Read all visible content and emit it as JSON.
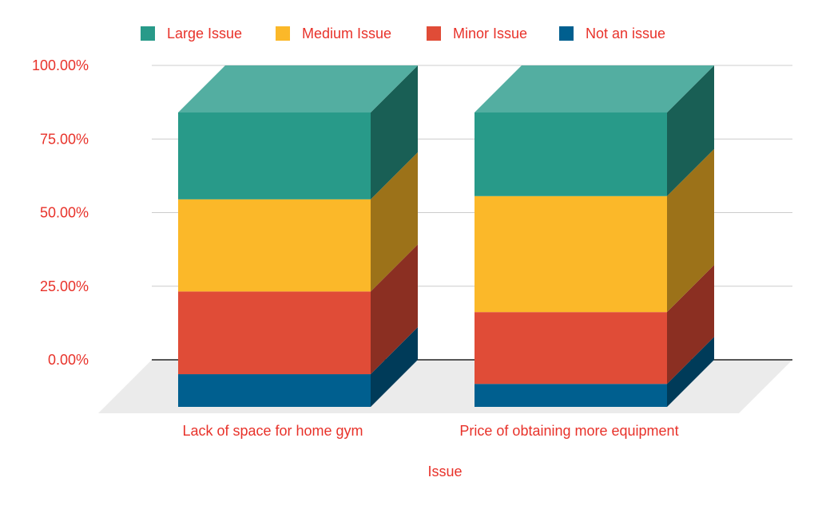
{
  "chart_data": {
    "type": "bar",
    "stacked": true,
    "three_d": true,
    "xlabel": "Issue",
    "ylabel": "",
    "ylim": [
      0,
      1
    ],
    "y_ticks": [
      "0.00%",
      "25.00%",
      "50.00%",
      "75.00%",
      "100.00%"
    ],
    "categories": [
      "Lack of space for home gym",
      "Price of obtaining more equipment"
    ],
    "series": [
      {
        "name": "Not an issue",
        "color": "#005f8f",
        "values": [
          0.111,
          0.078
        ]
      },
      {
        "name": "Minor Issue",
        "color": "#e04c37",
        "values": [
          0.281,
          0.244
        ]
      },
      {
        "name": "Medium Issue",
        "color": "#fbb829",
        "values": [
          0.313,
          0.394
        ]
      },
      {
        "name": "Large Issue",
        "color": "#289a89",
        "values": [
          0.295,
          0.284
        ]
      }
    ],
    "legend": [
      "Large Issue",
      "Medium Issue",
      "Minor Issue",
      "Not an issue"
    ],
    "legend_position": "top",
    "grid": true
  }
}
